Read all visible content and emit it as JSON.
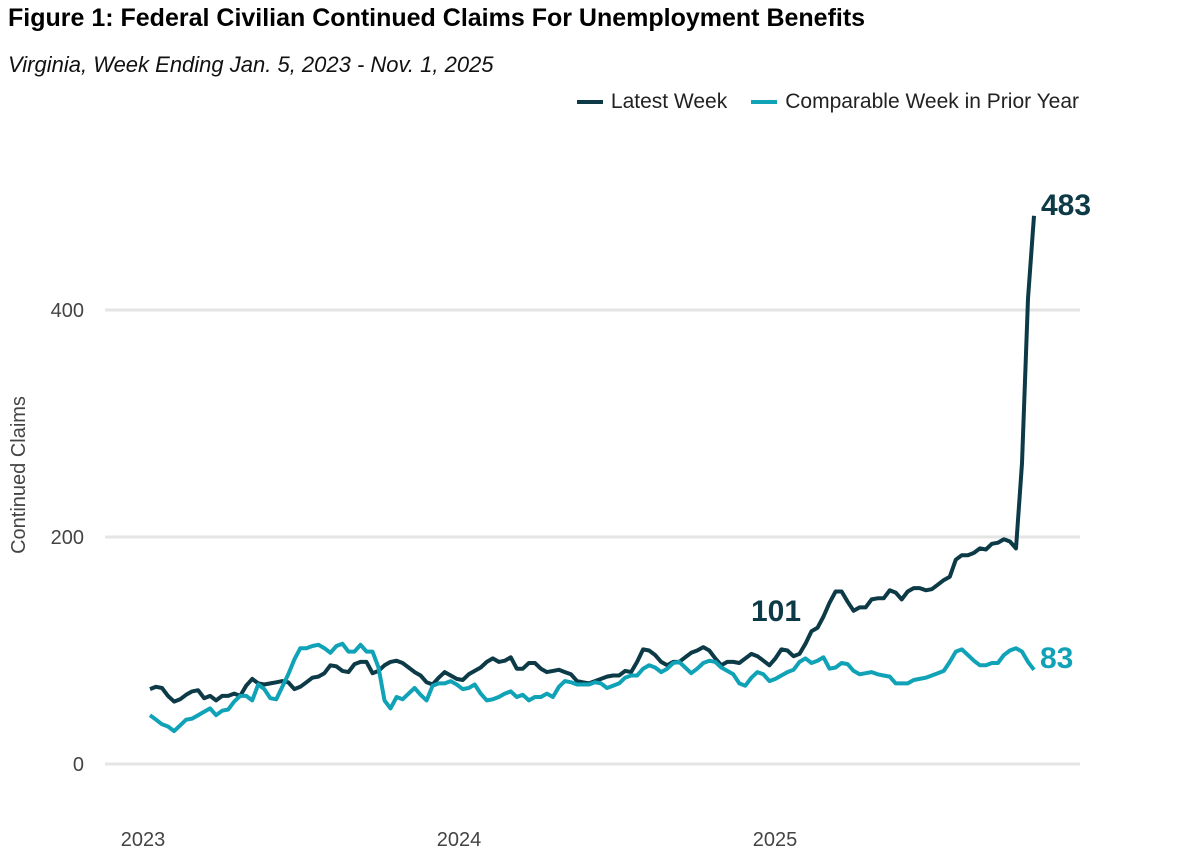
{
  "title": "Figure 1: Federal Civilian Continued Claims For Unemployment Benefits",
  "subtitle": "Virginia, Week Ending Jan. 5, 2023 - Nov. 1, 2025",
  "colors": {
    "latest": "#0c3a47",
    "prior": "#10a2b7",
    "grid": "#e5e5e5"
  },
  "chart_data": {
    "type": "line",
    "title": "Figure 1: Federal Civilian Continued Claims For Unemployment Benefits",
    "subtitle": "Virginia, Week Ending Jan. 5, 2023 - Nov. 1, 2025",
    "xlabel": "",
    "ylabel": "Continued Claims",
    "x_frequency": "weekly",
    "x_range": [
      "Jan. 5, 2023",
      "Nov. 1, 2025"
    ],
    "x_ticks": [
      "2023",
      "2024",
      "2025"
    ],
    "y_ticks": [
      "0",
      "200",
      "400"
    ],
    "ylim": [
      0,
      483
    ],
    "grid": "horizontal",
    "legend": "top-right",
    "series": [
      {
        "name": "Latest Week",
        "color": "#0c3a47",
        "values": [
          66,
          68,
          67,
          60,
          55,
          57,
          61,
          64,
          65,
          58,
          60,
          56,
          60,
          60,
          62,
          60,
          69,
          75,
          71,
          70,
          71,
          72,
          73,
          72,
          66,
          68,
          72,
          76,
          77,
          80,
          87,
          86,
          82,
          81,
          88,
          90,
          90,
          80,
          82,
          87,
          90,
          91,
          89,
          85,
          81,
          78,
          72,
          70,
          76,
          81,
          78,
          75,
          74,
          79,
          82,
          85,
          90,
          93,
          90,
          91,
          94,
          84,
          84,
          89,
          89,
          84,
          81,
          82,
          83,
          81,
          79,
          73,
          72,
          71,
          73,
          75,
          77,
          78,
          78,
          82,
          81,
          90,
          101,
          100,
          96,
          90,
          87,
          90,
          90,
          94,
          98,
          100,
          103,
          100,
          93,
          87,
          90,
          90,
          89,
          93,
          97,
          95,
          91,
          87,
          93,
          101,
          100,
          95,
          97,
          106,
          117,
          120,
          130,
          142,
          152,
          152,
          143,
          135,
          138,
          138,
          145,
          146,
          146,
          153,
          151,
          145,
          152,
          155,
          155,
          153,
          154,
          158,
          162,
          165,
          180,
          184,
          184,
          186,
          190,
          189,
          194,
          195,
          198,
          196,
          190,
          265,
          410,
          483
        ]
      },
      {
        "name": "Comparable Week in Prior Year",
        "color": "#10a2b7",
        "values": [
          43,
          39,
          35,
          33,
          29,
          34,
          39,
          40,
          43,
          46,
          49,
          43,
          47,
          48,
          55,
          60,
          60,
          56,
          70,
          66,
          58,
          57,
          68,
          79,
          92,
          102,
          102,
          104,
          105,
          102,
          98,
          104,
          106,
          99,
          99,
          105,
          99,
          99,
          85,
          56,
          49,
          59,
          57,
          62,
          67,
          61,
          56,
          69,
          71,
          71,
          73,
          70,
          66,
          67,
          70,
          62,
          56,
          57,
          59,
          62,
          64,
          59,
          61,
          56,
          59,
          59,
          62,
          59,
          68,
          73,
          72,
          70,
          70,
          70,
          72,
          71,
          67,
          69,
          71,
          76,
          78,
          78,
          84,
          87,
          85,
          81,
          84,
          89,
          90,
          85,
          80,
          84,
          89,
          91,
          90,
          85,
          82,
          79,
          71,
          69,
          76,
          81,
          79,
          73,
          75,
          78,
          81,
          83,
          90,
          93,
          89,
          91,
          94,
          84,
          85,
          89,
          88,
          82,
          79,
          80,
          81,
          79,
          78,
          77,
          71,
          71,
          71,
          74,
          75,
          76,
          78,
          80,
          82,
          90,
          99,
          101,
          96,
          91,
          87,
          87,
          89,
          89,
          96,
          100,
          102,
          99,
          90,
          83
        ]
      }
    ],
    "annotations": [
      {
        "text": "483",
        "series": "Latest Week",
        "value": 483
      },
      {
        "text": "101",
        "series": "Latest Week",
        "value": 101
      },
      {
        "text": "83",
        "series": "Comparable Week in Prior Year",
        "value": 83
      }
    ]
  }
}
